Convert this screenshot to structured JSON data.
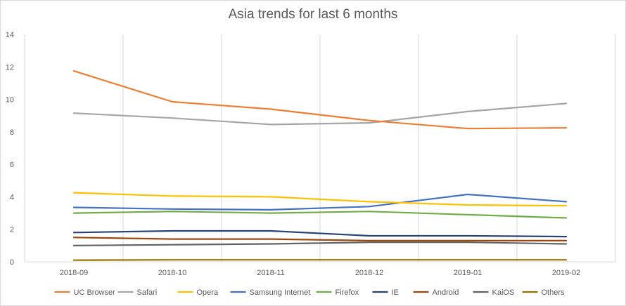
{
  "chart_data": {
    "type": "line",
    "title": "Asia trends for last 6 months",
    "xlabel": "",
    "ylabel": "",
    "x": [
      "2018-09",
      "2018-10",
      "2018-11",
      "2018-12",
      "2019-01",
      "2019-02"
    ],
    "ylim": [
      0,
      14
    ],
    "yticks": [
      0,
      2,
      4,
      6,
      8,
      10,
      12,
      14
    ],
    "grid": "vertical",
    "legend_position": "bottom",
    "series": [
      {
        "name": "UC Browser",
        "color": "#ed7d31",
        "values": [
          11.75,
          9.85,
          9.4,
          8.7,
          8.2,
          8.25
        ]
      },
      {
        "name": "Safari",
        "color": "#a5a5a5",
        "values": [
          9.15,
          8.85,
          8.45,
          8.55,
          9.25,
          9.75
        ]
      },
      {
        "name": "Opera",
        "color": "#ffc000",
        "values": [
          4.25,
          4.05,
          4.0,
          3.7,
          3.5,
          3.45
        ]
      },
      {
        "name": "Samsung Internet",
        "color": "#4472c4",
        "values": [
          3.35,
          3.25,
          3.2,
          3.4,
          4.15,
          3.7
        ]
      },
      {
        "name": "Firefox",
        "color": "#70ad47",
        "values": [
          3.0,
          3.1,
          3.0,
          3.1,
          2.9,
          2.7
        ]
      },
      {
        "name": "IE",
        "color": "#264478",
        "values": [
          1.8,
          1.9,
          1.9,
          1.6,
          1.6,
          1.55
        ]
      },
      {
        "name": "Android",
        "color": "#9e480e",
        "values": [
          1.5,
          1.4,
          1.4,
          1.3,
          1.3,
          1.3
        ]
      },
      {
        "name": "KaiOS",
        "color": "#636363",
        "values": [
          1.0,
          1.05,
          1.1,
          1.2,
          1.2,
          1.1
        ]
      },
      {
        "name": "Others",
        "color": "#997300",
        "values": [
          0.1,
          0.12,
          0.12,
          0.12,
          0.12,
          0.12
        ]
      }
    ]
  }
}
